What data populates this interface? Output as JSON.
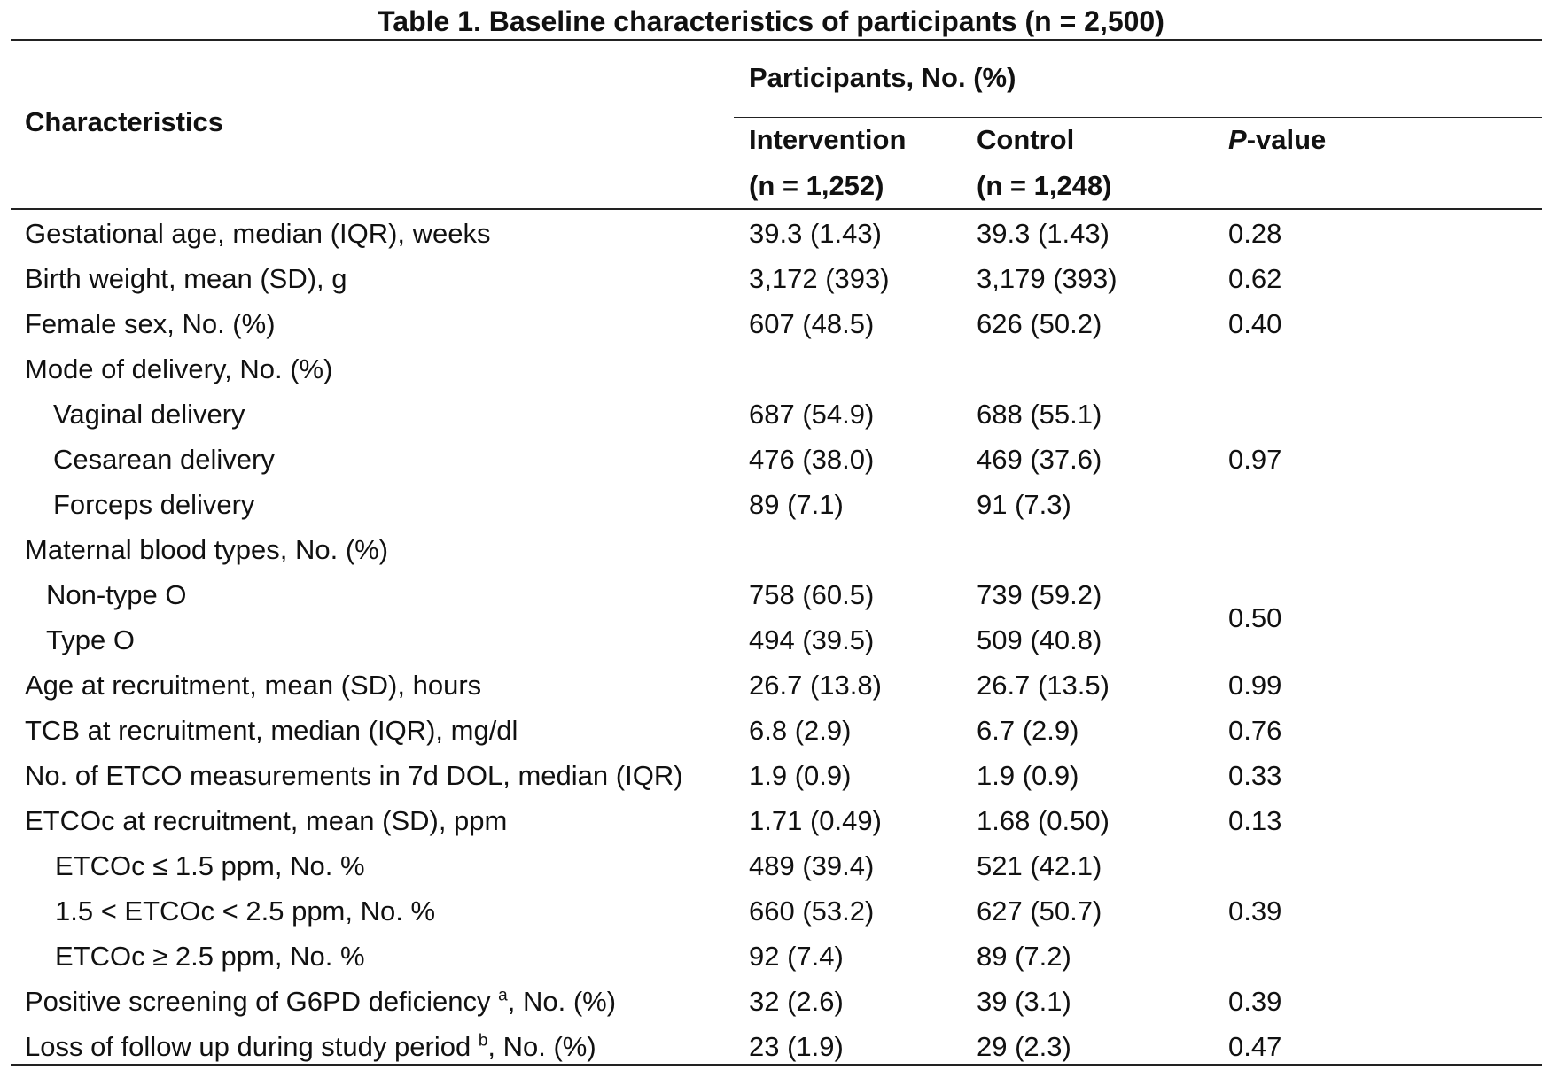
{
  "table": {
    "title": "Table 1. Baseline characteristics of participants (n = 2,500)",
    "headers": {
      "characteristics": "Characteristics",
      "group": "Participants, No. (%)",
      "intervention": "Intervention",
      "intervention_n": "(n = 1,252)",
      "control": "Control",
      "control_n": "(n = 1,248)",
      "p_italic": "P",
      "p_rest": "-value"
    },
    "rows": [
      {
        "label": "Gestational age, median (IQR), weeks",
        "intervention": "39.3 (1.43)",
        "control": "39.3 (1.43)",
        "p": "0.28",
        "indent": 0
      },
      {
        "label": "Birth weight, mean (SD), g",
        "intervention": "3,172 (393)",
        "control": "3,179 (393)",
        "p": "0.62",
        "indent": 0
      },
      {
        "label": "Female sex, No. (%)",
        "intervention": "607 (48.5)",
        "control": "626 (50.2)",
        "p": "0.40",
        "indent": 0
      },
      {
        "label": "Mode of delivery, No. (%)",
        "intervention": "",
        "control": "",
        "p": "",
        "indent": 0
      },
      {
        "label": "Vaginal delivery",
        "intervention": "687 (54.9)",
        "control": "688 (55.1)",
        "p": "",
        "indent": 1
      },
      {
        "label": "Cesarean delivery",
        "intervention": "476 (38.0)",
        "control": "469 (37.6)",
        "p": "0.97",
        "indent": 1
      },
      {
        "label": "Forceps delivery",
        "intervention": "89 (7.1)",
        "control": "91 (7.3)",
        "p": "",
        "indent": 1
      },
      {
        "label": "Maternal blood types, No. (%)",
        "intervention": "",
        "control": "",
        "p": "",
        "indent": 0
      },
      {
        "label": "Non-type O",
        "intervention": "758 (60.5)",
        "control": "739 (59.2)",
        "p": "",
        "indent": 2
      },
      {
        "label": "Type O",
        "intervention": "494 (39.5)",
        "control": "509 (40.8)",
        "p": "",
        "indent": 2
      },
      {
        "label": "Age at recruitment, mean (SD), hours",
        "intervention": "26.7 (13.8)",
        "control": "26.7 (13.5)",
        "p": "0.99",
        "indent": 0
      },
      {
        "label": "TCB at recruitment, median (IQR), mg/dl",
        "intervention": "6.8 (2.9)",
        "control": "6.7 (2.9)",
        "p": "0.76",
        "indent": 0
      },
      {
        "label": "No. of ETCO measurements in 7d DOL, median (IQR)",
        "intervention": "1.9 (0.9)",
        "control": "1.9 (0.9)",
        "p": "0.33",
        "indent": 0
      },
      {
        "label": "ETCOc at recruitment, mean (SD), ppm",
        "intervention": "1.71 (0.49)",
        "control": "1.68 (0.50)",
        "p": "0.13",
        "indent": 0
      },
      {
        "label": "ETCOc ≤ 1.5 ppm, No. %",
        "intervention": "489 (39.4)",
        "control": "521 (42.1)",
        "p": "",
        "indent": 3
      },
      {
        "label": "1.5 < ETCOc < 2.5 ppm, No. %",
        "intervention": "660 (53.2)",
        "control": "627 (50.7)",
        "p": "0.39",
        "indent": 3
      },
      {
        "label": "ETCOc ≥ 2.5 ppm, No. %",
        "intervention": "92 (7.4)",
        "control": "89 (7.2)",
        "p": "",
        "indent": 3
      },
      {
        "label": "Positive screening of G6PD deficiency",
        "sup": "a",
        "label_suffix": ", No. (%)",
        "intervention": "32 (2.6)",
        "control": "39 (3.1)",
        "p": "0.39",
        "indent": 0
      },
      {
        "label": "Loss of follow up during study period",
        "sup": "b",
        "label_suffix": ", No. (%)",
        "intervention": "23 (1.9)",
        "control": "29 (2.3)",
        "p": "0.47",
        "indent": 0
      }
    ],
    "blood_type_p": "0.50"
  }
}
